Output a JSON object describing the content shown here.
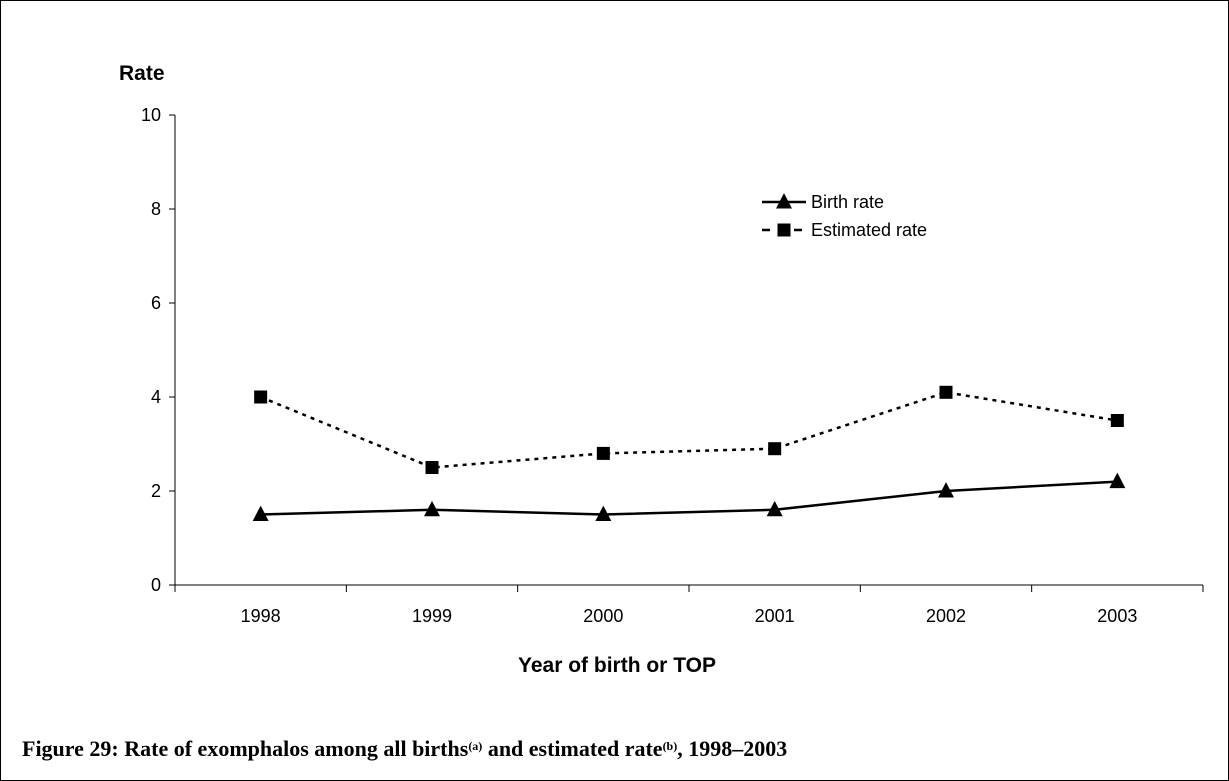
{
  "chart_data": {
    "type": "line",
    "title": "",
    "xlabel": "Year of birth or TOP",
    "ylabel": "Rate",
    "ylim": [
      0,
      10
    ],
    "yticks": [
      "0",
      "2",
      "4",
      "6",
      "8",
      "10"
    ],
    "categories": [
      "1998",
      "1999",
      "2000",
      "2001",
      "2002",
      "2003"
    ],
    "series": [
      {
        "name": "Birth rate",
        "values": [
          1.5,
          1.6,
          1.5,
          1.6,
          2.0,
          2.2
        ],
        "line": "solid",
        "marker": "triangle",
        "color": "#000000"
      },
      {
        "name": "Estimated rate",
        "values": [
          4.0,
          2.5,
          2.8,
          2.9,
          4.1,
          3.5
        ],
        "line": "dotted",
        "marker": "square",
        "color": "#000000"
      }
    ],
    "legend_position": "top-right",
    "grid": false
  },
  "caption": {
    "part1": "Figure 29: Rate of exomphalos among all births",
    "sup_a": "(a)",
    "part2": " and estimated rate",
    "sup_b": "(b)",
    "part3": ", 1998–2003"
  }
}
